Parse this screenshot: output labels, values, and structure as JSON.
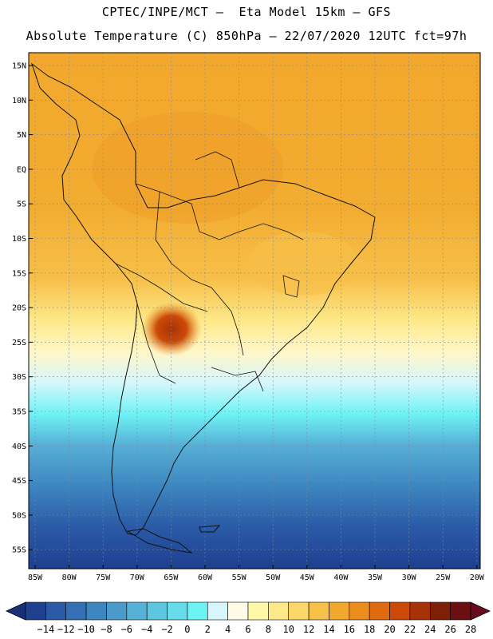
{
  "header": {
    "line1": "CPTEC/INPE/MCT –  Eta Model 15km – GFS",
    "line2": "Absolute Temperature (C) 850hPa – 22/07/2020 12UTC fct=97h"
  },
  "map": {
    "lat_ticks": [
      "15N",
      "10N",
      "5N",
      "EQ",
      "5S",
      "10S",
      "15S",
      "20S",
      "25S",
      "30S",
      "35S",
      "40S",
      "45S",
      "50S",
      "55S"
    ],
    "lon_ticks": [
      "85W",
      "80W",
      "75W",
      "70W",
      "65W",
      "60W",
      "55W",
      "50W",
      "45W",
      "40W",
      "35W",
      "30W",
      "25W",
      "20W"
    ]
  },
  "colorbar": {
    "labels": [
      "-14",
      "-12",
      "-10",
      "-8",
      "-6",
      "-4",
      "-2",
      "0",
      "2",
      "4",
      "6",
      "8",
      "10",
      "12",
      "14",
      "16",
      "18",
      "20",
      "22",
      "24",
      "26",
      "28"
    ],
    "colors": [
      "#1f3f8f",
      "#2a5aa6",
      "#3470b3",
      "#3d86c0",
      "#4a9bcb",
      "#57b0d6",
      "#5fc6e0",
      "#66dceb",
      "#6ef3f5",
      "#d6f6fb",
      "#fffbe6",
      "#fff7a8",
      "#fde98a",
      "#fbd76a",
      "#f7c04a",
      "#f2a82c",
      "#ea8c1e",
      "#df6a10",
      "#cc4a08",
      "#a83208",
      "#7e2008",
      "#6a1010"
    ]
  }
}
